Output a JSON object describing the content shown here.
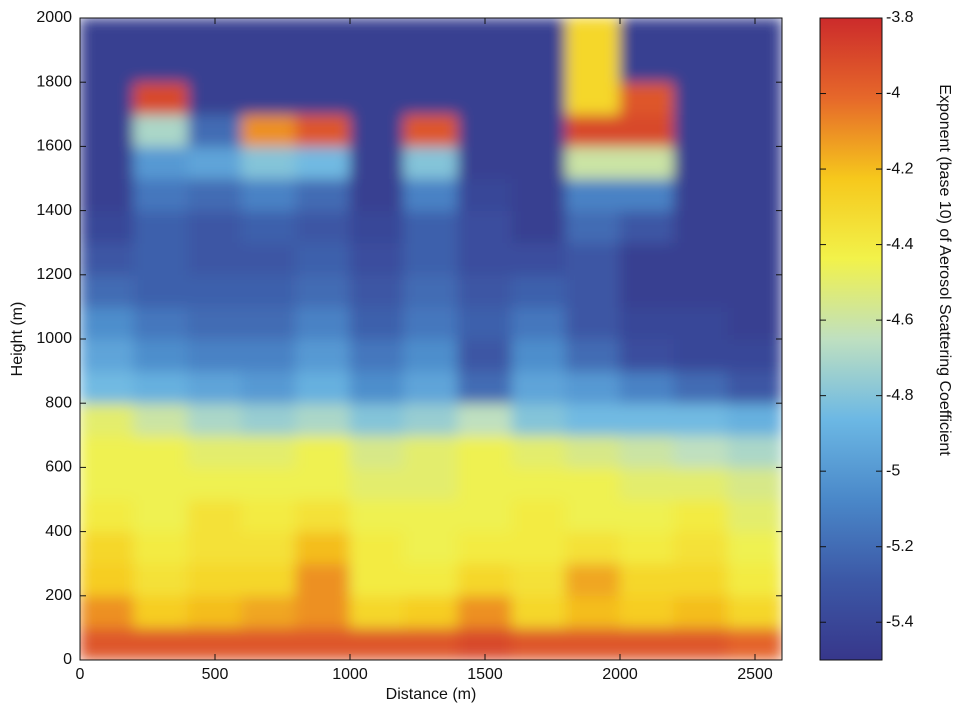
{
  "chart_data": {
    "type": "heatmap",
    "xlabel": "Distance (m)",
    "ylabel": "Height (m)",
    "colorbar_label": "Exponent (base 10) of Aerosol Scattering Coefficient",
    "xbins": [
      0,
      200,
      400,
      600,
      800,
      1000,
      1200,
      1400,
      1600,
      1800,
      2000,
      2200,
      2400,
      2600
    ],
    "ybins": [
      0,
      100,
      200,
      300,
      400,
      500,
      600,
      700,
      800,
      900,
      1000,
      1100,
      1200,
      1300,
      1400,
      1500,
      1600,
      1700,
      1800,
      1900,
      2000
    ],
    "z": [
      [
        -3.95,
        -3.95,
        -3.95,
        -3.95,
        -3.95,
        -3.95,
        -3.95,
        -3.9,
        -3.95,
        -3.95,
        -3.95,
        -3.95,
        -4.0
      ],
      [
        -4.1,
        -4.25,
        -4.2,
        -4.15,
        -4.1,
        -4.3,
        -4.25,
        -4.1,
        -4.3,
        -4.2,
        -4.25,
        -4.2,
        -4.3
      ],
      [
        -4.25,
        -4.35,
        -4.3,
        -4.3,
        -4.1,
        -4.4,
        -4.4,
        -4.3,
        -4.35,
        -4.15,
        -4.3,
        -4.3,
        -4.4
      ],
      [
        -4.3,
        -4.4,
        -4.35,
        -4.35,
        -4.2,
        -4.4,
        -4.45,
        -4.4,
        -4.4,
        -4.35,
        -4.4,
        -4.35,
        -4.45
      ],
      [
        -4.4,
        -4.45,
        -4.35,
        -4.4,
        -4.35,
        -4.45,
        -4.45,
        -4.45,
        -4.4,
        -4.45,
        -4.45,
        -4.4,
        -4.5
      ],
      [
        -4.45,
        -4.45,
        -4.45,
        -4.45,
        -4.45,
        -4.5,
        -4.5,
        -4.45,
        -4.45,
        -4.45,
        -4.5,
        -4.5,
        -4.55
      ],
      [
        -4.45,
        -4.45,
        -4.5,
        -4.5,
        -4.45,
        -4.55,
        -4.5,
        -4.45,
        -4.5,
        -4.55,
        -4.6,
        -4.65,
        -4.7
      ],
      [
        -4.5,
        -4.6,
        -4.7,
        -4.75,
        -4.7,
        -4.8,
        -4.75,
        -4.65,
        -4.8,
        -4.85,
        -4.85,
        -4.85,
        -4.9
      ],
      [
        -4.85,
        -4.9,
        -4.95,
        -5.0,
        -4.9,
        -5.05,
        -4.95,
        -5.2,
        -4.95,
        -5.0,
        -5.1,
        -5.2,
        -5.3
      ],
      [
        -4.95,
        -5.05,
        -5.1,
        -5.1,
        -5.0,
        -5.15,
        -5.05,
        -5.3,
        -5.05,
        -5.2,
        -5.35,
        -5.4,
        -5.4
      ],
      [
        -5.05,
        -5.15,
        -5.2,
        -5.2,
        -5.1,
        -5.25,
        -5.15,
        -5.25,
        -5.15,
        -5.3,
        -5.4,
        -5.4,
        -5.45
      ],
      [
        -5.2,
        -5.25,
        -5.25,
        -5.25,
        -5.2,
        -5.3,
        -5.2,
        -5.3,
        -5.25,
        -5.3,
        -5.45,
        -5.45,
        -5.45
      ],
      [
        -5.3,
        -5.25,
        -5.3,
        -5.3,
        -5.25,
        -5.35,
        -5.25,
        -5.35,
        -5.35,
        -5.3,
        -5.45,
        -5.45,
        -5.45
      ],
      [
        -5.4,
        -5.25,
        -5.3,
        -5.25,
        -5.3,
        -5.4,
        -5.25,
        -5.35,
        -5.45,
        -5.2,
        -5.3,
        -5.45,
        -5.45
      ],
      [
        -5.45,
        -5.15,
        -5.2,
        -5.1,
        -5.2,
        -5.45,
        -5.1,
        -5.4,
        -5.45,
        -5.1,
        -5.1,
        -5.45,
        -5.45
      ],
      [
        -5.45,
        -5.0,
        -4.95,
        -4.8,
        -4.85,
        -5.45,
        -4.8,
        -5.45,
        -5.45,
        -4.6,
        -4.6,
        -5.45,
        -5.45
      ],
      [
        -5.45,
        -4.7,
        -5.2,
        -4.1,
        -3.95,
        -5.45,
        -3.95,
        -5.45,
        -5.45,
        -3.9,
        -3.9,
        -5.45,
        -5.45
      ],
      [
        -5.45,
        -3.9,
        -5.45,
        -5.45,
        -5.45,
        -5.45,
        -5.45,
        -5.45,
        -5.45,
        -4.3,
        -3.95,
        -5.45,
        -5.45
      ],
      [
        -5.45,
        -5.45,
        -5.45,
        -5.45,
        -5.45,
        -5.45,
        -5.45,
        -5.45,
        -5.45,
        -4.3,
        -5.45,
        -5.45,
        -5.45
      ],
      [
        -5.45,
        -5.45,
        -5.45,
        -5.45,
        -5.45,
        -5.45,
        -5.45,
        -5.45,
        -5.45,
        -4.3,
        -5.45,
        -5.45,
        -5.45
      ]
    ],
    "colors": [
      "#37378b",
      "#3c58a6",
      "#4a88c9",
      "#6cb8e4",
      "#bfe0c0",
      "#f2f24a",
      "#f6c81c",
      "#e6682a",
      "#cc2b2b"
    ],
    "xlim": [
      0,
      2600
    ],
    "ylim": [
      0,
      2000
    ],
    "zlim": [
      -5.5,
      -3.8
    ],
    "xticks": [
      0,
      500,
      1000,
      1500,
      2000,
      2500
    ],
    "yticks": [
      0,
      200,
      400,
      600,
      800,
      1000,
      1200,
      1400,
      1600,
      1800,
      2000
    ],
    "zticks": [
      -3.8,
      -4,
      -4.2,
      -4.4,
      -4.6,
      -4.8,
      -5,
      -5.2,
      -5.4
    ]
  }
}
